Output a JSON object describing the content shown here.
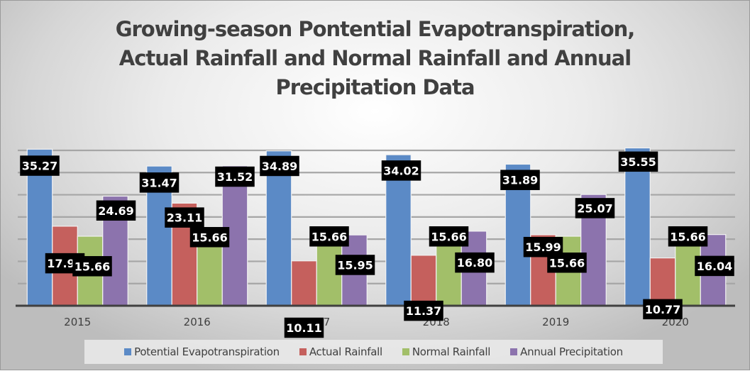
{
  "chart_data": {
    "type": "bar",
    "title": "Growing-season Pontential Evapotranspiration,\nActual Rainfall and Normal Rainfall and Annual\nPrecipitation Data",
    "xlabel": "",
    "ylabel": "",
    "categories": [
      "2015",
      "2016",
      "2017",
      "2018",
      "2019",
      "2020"
    ],
    "ylim": [
      0,
      35
    ],
    "y_gridlines": [
      5,
      10,
      15,
      20,
      25,
      30,
      35
    ],
    "grid": true,
    "y_tick_labels_visible": false,
    "legend_position": "bottom",
    "series": [
      {
        "name": "Potential Evapotranspiration",
        "color": "#5B8AC6",
        "values": [
          35.27,
          31.47,
          34.89,
          34.02,
          31.89,
          35.55
        ],
        "labels": [
          "35.27",
          "31.47",
          "34.89",
          "34.02",
          "31.89",
          "35.55"
        ]
      },
      {
        "name": "Actual Rainfall",
        "color": "#C5605D",
        "values": [
          17.92,
          23.11,
          10.11,
          11.37,
          15.99,
          10.77
        ],
        "labels": [
          "17.92",
          "23.11",
          "10.11",
          "11.37",
          "15.99",
          "10.77"
        ]
      },
      {
        "name": "Normal Rainfall",
        "color": "#A2BF69",
        "values": [
          15.66,
          15.66,
          15.66,
          15.66,
          15.66,
          15.66
        ],
        "labels": [
          "15.66",
          "15.66",
          "15.66",
          "15.66",
          "15.66",
          "15.66"
        ]
      },
      {
        "name": "Annual Precipitation",
        "color": "#8C73AD",
        "values": [
          24.69,
          31.52,
          15.95,
          16.8,
          25.07,
          16.04
        ],
        "labels": [
          "24.69",
          "31.52",
          "15.95",
          "16.80",
          "25.07",
          "16.04"
        ]
      }
    ]
  }
}
